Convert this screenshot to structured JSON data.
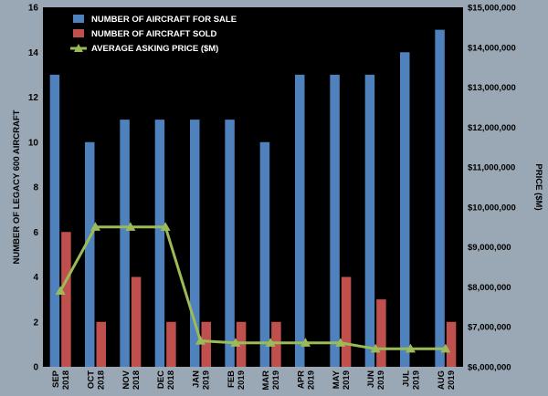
{
  "chart_data": {
    "type": "bar",
    "categories": [
      [
        "SEP",
        "2018"
      ],
      [
        "OCT",
        "2018"
      ],
      [
        "NOV",
        "2018"
      ],
      [
        "DEC",
        "2018"
      ],
      [
        "JAN",
        "2019"
      ],
      [
        "FEB",
        "2019"
      ],
      [
        "MAR",
        "2019"
      ],
      [
        "APR",
        "2019"
      ],
      [
        "MAY",
        "2019"
      ],
      [
        "JUN",
        "2019"
      ],
      [
        "JUL",
        "2019"
      ],
      [
        "AUG",
        "2019"
      ]
    ],
    "series": [
      {
        "name": "NUMBER OF AIRCRAFT FOR SALE",
        "type": "bar",
        "axis": "left",
        "color": "#4f81bd",
        "values": [
          13,
          10,
          11,
          11,
          11,
          11,
          10,
          13,
          13,
          13,
          14,
          15
        ]
      },
      {
        "name": "NUMBER OF AIRCRAFT SOLD",
        "type": "bar",
        "axis": "left",
        "color": "#c0504d",
        "values": [
          6,
          2,
          4,
          2,
          2,
          2,
          2,
          0,
          4,
          3,
          0,
          2
        ]
      },
      {
        "name": "AVERAGE ASKING PRICE ($M)",
        "type": "line",
        "axis": "right",
        "color": "#9bbb59",
        "values": [
          7900000,
          9500000,
          9500000,
          9500000,
          6650000,
          6600000,
          6600000,
          6600000,
          6600000,
          6450000,
          6450000,
          6450000
        ]
      }
    ],
    "ylabel": "NUMBER OF LEGACY 600 AIRCRAFT",
    "ylim": [
      0,
      16
    ],
    "yticks": [
      "0",
      "2",
      "4",
      "6",
      "8",
      "10",
      "12",
      "14",
      "16"
    ],
    "y2label": "PRICE ($M)",
    "y2lim": [
      6000000,
      15000000
    ],
    "y2ticks": [
      "$6,000,000",
      "$7,000,000",
      "$8,000,000",
      "$9,000,000",
      "$10,000,000",
      "$11,000,000",
      "$12,000,000",
      "$13,000,000",
      "$14,000,000",
      "$15,000,000"
    ],
    "grid": false,
    "legend": "top-left",
    "colors": {
      "background": "#000000",
      "frame": "#9aa7b4"
    }
  }
}
